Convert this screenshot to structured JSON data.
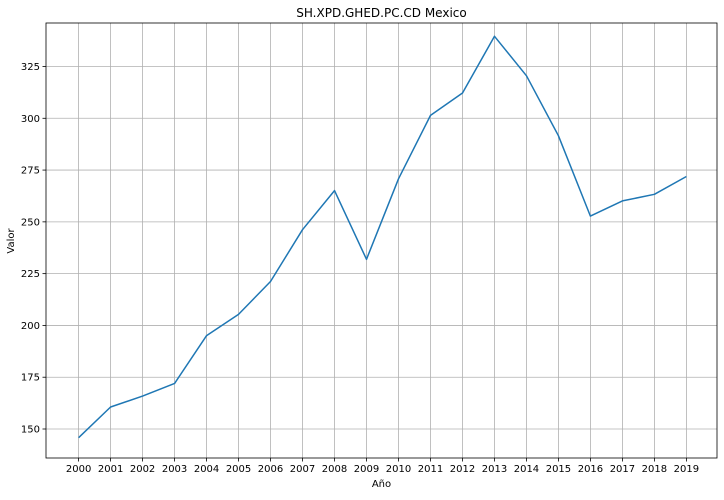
{
  "chart_data": {
    "type": "line",
    "title": "SH.XPD.GHED.PC.CD Mexico",
    "xlabel": "Año",
    "ylabel": "Valor",
    "x": [
      "2000",
      "2001",
      "2002",
      "2003",
      "2004",
      "2005",
      "2006",
      "2007",
      "2008",
      "2009",
      "2010",
      "2011",
      "2012",
      "2013",
      "2014",
      "2015",
      "2016",
      "2017",
      "2018",
      "2019"
    ],
    "series": [
      {
        "values": [
          145.8,
          160.6,
          165.9,
          172.0,
          195.1,
          205.3,
          221.2,
          246.2,
          265.1,
          231.9,
          270.8,
          301.4,
          312.2,
          339.6,
          320.5,
          291.6,
          252.8,
          260.1,
          263.3,
          271.9
        ]
      }
    ],
    "yticks": [
      150,
      175,
      200,
      225,
      250,
      275,
      300,
      325
    ],
    "ylim": [
      136,
      346
    ],
    "grid": true,
    "line_color": "#1f77b4"
  }
}
